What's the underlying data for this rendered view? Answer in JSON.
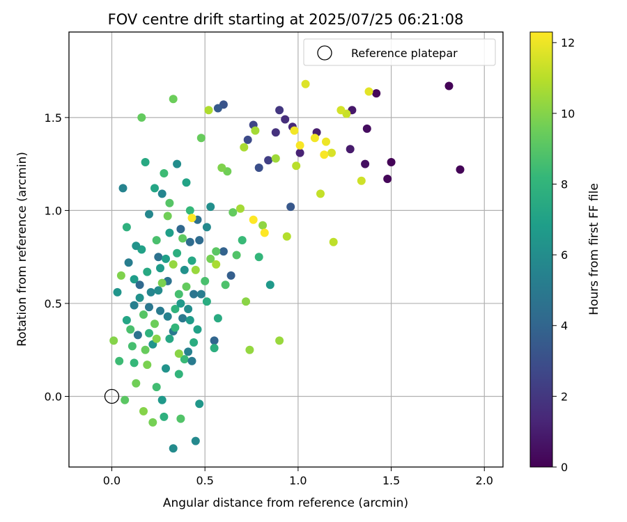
{
  "chart_data": {
    "type": "scatter",
    "title": "FOV centre drift starting at 2025/07/25 06:21:08",
    "xlabel": "Angular distance from reference (arcmin)",
    "ylabel": "Rotation from reference (arcmin)",
    "xlim": [
      -0.23,
      2.1
    ],
    "ylim": [
      -0.38,
      1.96
    ],
    "xticks": [
      "0.0",
      "0.5",
      "1.0",
      "1.5",
      "2.0"
    ],
    "xtick_values": [
      0.0,
      0.5,
      1.0,
      1.5,
      2.0
    ],
    "yticks": [
      "0.0",
      "0.5",
      "1.0",
      "1.5"
    ],
    "ytick_values": [
      0.0,
      0.5,
      1.0,
      1.5
    ],
    "grid": true,
    "legend": {
      "placement": "upper right",
      "entries": [
        "Reference platepar"
      ]
    },
    "colormap": "viridis",
    "colors": {
      "viridis": [
        "#440154",
        "#482878",
        "#3e4989",
        "#31688e",
        "#26828e",
        "#1f9e89",
        "#35b779",
        "#6ece58",
        "#b5de2b",
        "#fde725"
      ],
      "grid": "#b0b0b0",
      "axes": "#000000"
    },
    "colorbar": {
      "label": "Hours from first FF file",
      "min": 0,
      "max": 12.3,
      "ticks": [
        "0",
        "2",
        "4",
        "6",
        "8",
        "10",
        "12"
      ],
      "tick_values": [
        0,
        2,
        4,
        6,
        8,
        10,
        12
      ]
    },
    "reference_point": {
      "x": 0.0,
      "y": 0.0,
      "label": "Reference platepar"
    },
    "series": [
      {
        "points": [
          [
            1.81,
            1.67,
            0.1
          ],
          [
            1.87,
            1.22,
            0.1
          ],
          [
            1.42,
            1.63,
            0.2
          ],
          [
            1.5,
            1.26,
            0.1
          ],
          [
            1.48,
            1.17,
            0.2
          ],
          [
            1.37,
            1.44,
            0.4
          ],
          [
            1.36,
            1.25,
            0.5
          ],
          [
            1.29,
            1.54,
            0.8
          ],
          [
            1.28,
            1.33,
            0.9
          ],
          [
            1.1,
            1.42,
            1.0
          ],
          [
            1.01,
            1.31,
            1.2
          ],
          [
            0.97,
            1.45,
            1.4
          ],
          [
            0.93,
            1.49,
            1.6
          ],
          [
            0.88,
            1.42,
            1.8
          ],
          [
            0.9,
            1.54,
            2.0
          ],
          [
            0.84,
            1.27,
            2.3
          ],
          [
            0.76,
            1.46,
            2.6
          ],
          [
            0.73,
            1.38,
            2.8
          ],
          [
            0.79,
            1.23,
            3.0
          ],
          [
            0.6,
            1.57,
            3.2
          ],
          [
            0.96,
            1.02,
            3.4
          ],
          [
            0.57,
            1.55,
            3.5
          ],
          [
            0.64,
            0.65,
            3.7
          ],
          [
            0.6,
            0.78,
            3.9
          ],
          [
            0.55,
            0.3,
            4.0
          ],
          [
            0.37,
            0.9,
            4.1
          ],
          [
            0.42,
            0.83,
            4.3
          ],
          [
            0.46,
            0.95,
            4.5
          ],
          [
            0.25,
            0.75,
            4.6
          ],
          [
            0.3,
            0.62,
            4.7
          ],
          [
            0.44,
            0.55,
            4.8
          ],
          [
            0.38,
            0.42,
            5.0
          ],
          [
            0.33,
            0.35,
            5.0
          ],
          [
            0.26,
            0.46,
            5.1
          ],
          [
            0.48,
            0.55,
            5.2
          ],
          [
            0.12,
            0.49,
            5.3
          ],
          [
            0.41,
            0.24,
            5.4
          ],
          [
            0.06,
            1.12,
            5.5
          ],
          [
            0.27,
            1.09,
            5.6
          ],
          [
            0.2,
            0.98,
            5.7
          ],
          [
            0.45,
            -0.24,
            5.8
          ],
          [
            0.33,
            -0.28,
            5.9
          ],
          [
            0.35,
            1.25,
            6.0
          ],
          [
            0.53,
            1.02,
            6.1
          ],
          [
            0.39,
            0.68,
            6.2
          ],
          [
            0.15,
            0.53,
            6.2
          ],
          [
            0.29,
            0.15,
            6.3
          ],
          [
            0.22,
            0.28,
            6.4
          ],
          [
            0.47,
            -0.04,
            6.5
          ],
          [
            0.27,
            -0.02,
            6.6
          ],
          [
            0.42,
            0.41,
            6.7
          ],
          [
            0.12,
            0.63,
            6.8
          ],
          [
            0.31,
            0.88,
            6.9
          ],
          [
            0.16,
            0.79,
            7.0
          ],
          [
            0.4,
            1.15,
            7.1
          ],
          [
            0.23,
            1.12,
            7.2
          ],
          [
            0.43,
            0.73,
            7.3
          ],
          [
            0.18,
            1.26,
            7.4
          ],
          [
            0.57,
            0.42,
            7.5
          ],
          [
            0.51,
            0.51,
            7.6
          ],
          [
            0.55,
            0.26,
            7.7
          ],
          [
            0.08,
            0.91,
            7.8
          ],
          [
            0.2,
            0.34,
            7.9
          ],
          [
            0.36,
            0.12,
            8.0
          ],
          [
            0.34,
            0.37,
            8.1
          ],
          [
            0.42,
            1.0,
            8.2
          ],
          [
            0.7,
            0.84,
            8.3
          ],
          [
            0.28,
            1.2,
            8.4
          ],
          [
            0.24,
            0.05,
            8.5
          ],
          [
            0.36,
            0.55,
            8.6
          ],
          [
            0.1,
            0.36,
            8.7
          ],
          [
            0.61,
            0.6,
            8.8
          ],
          [
            0.67,
            0.76,
            8.9
          ],
          [
            0.31,
            1.04,
            9.0
          ],
          [
            0.56,
            0.78,
            9.1
          ],
          [
            0.38,
            0.85,
            9.2
          ],
          [
            0.16,
            1.5,
            9.3
          ],
          [
            0.48,
            1.39,
            9.4
          ],
          [
            0.33,
            1.6,
            9.5
          ],
          [
            0.62,
            1.21,
            9.6
          ],
          [
            0.22,
            -0.14,
            9.7
          ],
          [
            0.19,
            0.17,
            9.8
          ],
          [
            0.05,
            0.65,
            9.9
          ],
          [
            0.01,
            0.3,
            10.0
          ],
          [
            0.72,
            0.51,
            10.1
          ],
          [
            0.81,
            0.92,
            10.2
          ],
          [
            0.74,
            0.25,
            10.3
          ],
          [
            0.9,
            0.3,
            10.4
          ],
          [
            0.88,
            1.28,
            10.5
          ],
          [
            0.77,
            1.43,
            10.6
          ],
          [
            0.71,
            1.34,
            10.7
          ],
          [
            0.52,
            1.54,
            10.8
          ],
          [
            0.94,
            0.86,
            10.9
          ],
          [
            0.99,
            1.24,
            11.0
          ],
          [
            1.19,
            0.83,
            11.1
          ],
          [
            1.12,
            1.09,
            11.2
          ],
          [
            1.26,
            1.52,
            11.3
          ],
          [
            1.34,
            1.16,
            11.4
          ],
          [
            1.23,
            1.54,
            11.5
          ],
          [
            1.18,
            1.31,
            11.6
          ],
          [
            1.04,
            1.68,
            11.7
          ],
          [
            1.38,
            1.64,
            11.8
          ],
          [
            1.15,
            1.37,
            12.0
          ],
          [
            1.09,
            1.39,
            12.1
          ],
          [
            1.14,
            1.3,
            12.2
          ],
          [
            0.76,
            0.95,
            12.3
          ],
          [
            0.82,
            0.88,
            12.3
          ],
          [
            0.43,
            0.96,
            12.3
          ],
          [
            1.01,
            1.35,
            12.2
          ],
          [
            0.98,
            1.43,
            12.1
          ],
          [
            0.85,
            0.6,
            6.6
          ],
          [
            0.79,
            0.75,
            8.1
          ],
          [
            0.65,
            0.99,
            9.3
          ],
          [
            0.59,
            1.23,
            9.9
          ],
          [
            0.69,
            1.01,
            10.6
          ],
          [
            0.14,
            0.33,
            4.6
          ],
          [
            0.21,
            0.56,
            5.6
          ],
          [
            0.26,
            0.69,
            6.7
          ],
          [
            0.31,
            0.31,
            7.3
          ],
          [
            0.35,
            0.77,
            7.7
          ],
          [
            0.39,
            0.2,
            8.3
          ],
          [
            0.11,
            0.27,
            8.6
          ],
          [
            0.17,
            0.44,
            9.0
          ],
          [
            0.23,
            0.39,
            9.5
          ],
          [
            0.27,
            0.61,
            9.8
          ],
          [
            0.33,
            0.71,
            10.3
          ],
          [
            0.09,
            0.72,
            5.2
          ],
          [
            0.13,
            0.81,
            6.3
          ],
          [
            0.19,
            0.67,
            7.4
          ],
          [
            0.24,
            0.84,
            8.7
          ],
          [
            0.3,
            0.97,
            9.6
          ],
          [
            0.36,
            0.23,
            10.1
          ],
          [
            0.41,
            0.47,
            6.0
          ],
          [
            0.46,
            0.36,
            7.0
          ],
          [
            0.04,
            0.19,
            8.4
          ],
          [
            0.07,
            -0.02,
            9.1
          ],
          [
            0.13,
            0.07,
            9.6
          ],
          [
            0.17,
            -0.08,
            10.0
          ],
          [
            0.28,
            -0.11,
            7.8
          ],
          [
            0.37,
            -0.12,
            8.9
          ],
          [
            0.43,
            0.19,
            5.1
          ],
          [
            0.15,
            0.6,
            4.2
          ],
          [
            0.2,
            0.48,
            4.9
          ],
          [
            0.25,
            0.57,
            5.9
          ],
          [
            0.29,
            0.74,
            6.9
          ],
          [
            0.34,
            0.47,
            7.9
          ],
          [
            0.4,
            0.59,
            9.3
          ],
          [
            0.45,
            0.68,
            10.4
          ],
          [
            0.03,
            0.56,
            6.4
          ],
          [
            0.08,
            0.41,
            7.2
          ],
          [
            0.12,
            0.18,
            8.2
          ],
          [
            0.18,
            0.25,
            9.4
          ],
          [
            0.24,
            0.31,
            10.0
          ],
          [
            0.3,
            0.43,
            5.4
          ],
          [
            0.37,
            0.5,
            6.6
          ],
          [
            0.44,
            0.29,
            7.6
          ],
          [
            0.5,
            0.62,
            8.7
          ],
          [
            0.53,
            0.74,
            9.7
          ],
          [
            0.56,
            0.71,
            10.7
          ],
          [
            0.47,
            0.84,
            4.3
          ],
          [
            0.51,
            0.91,
            5.8
          ]
        ]
      }
    ]
  }
}
